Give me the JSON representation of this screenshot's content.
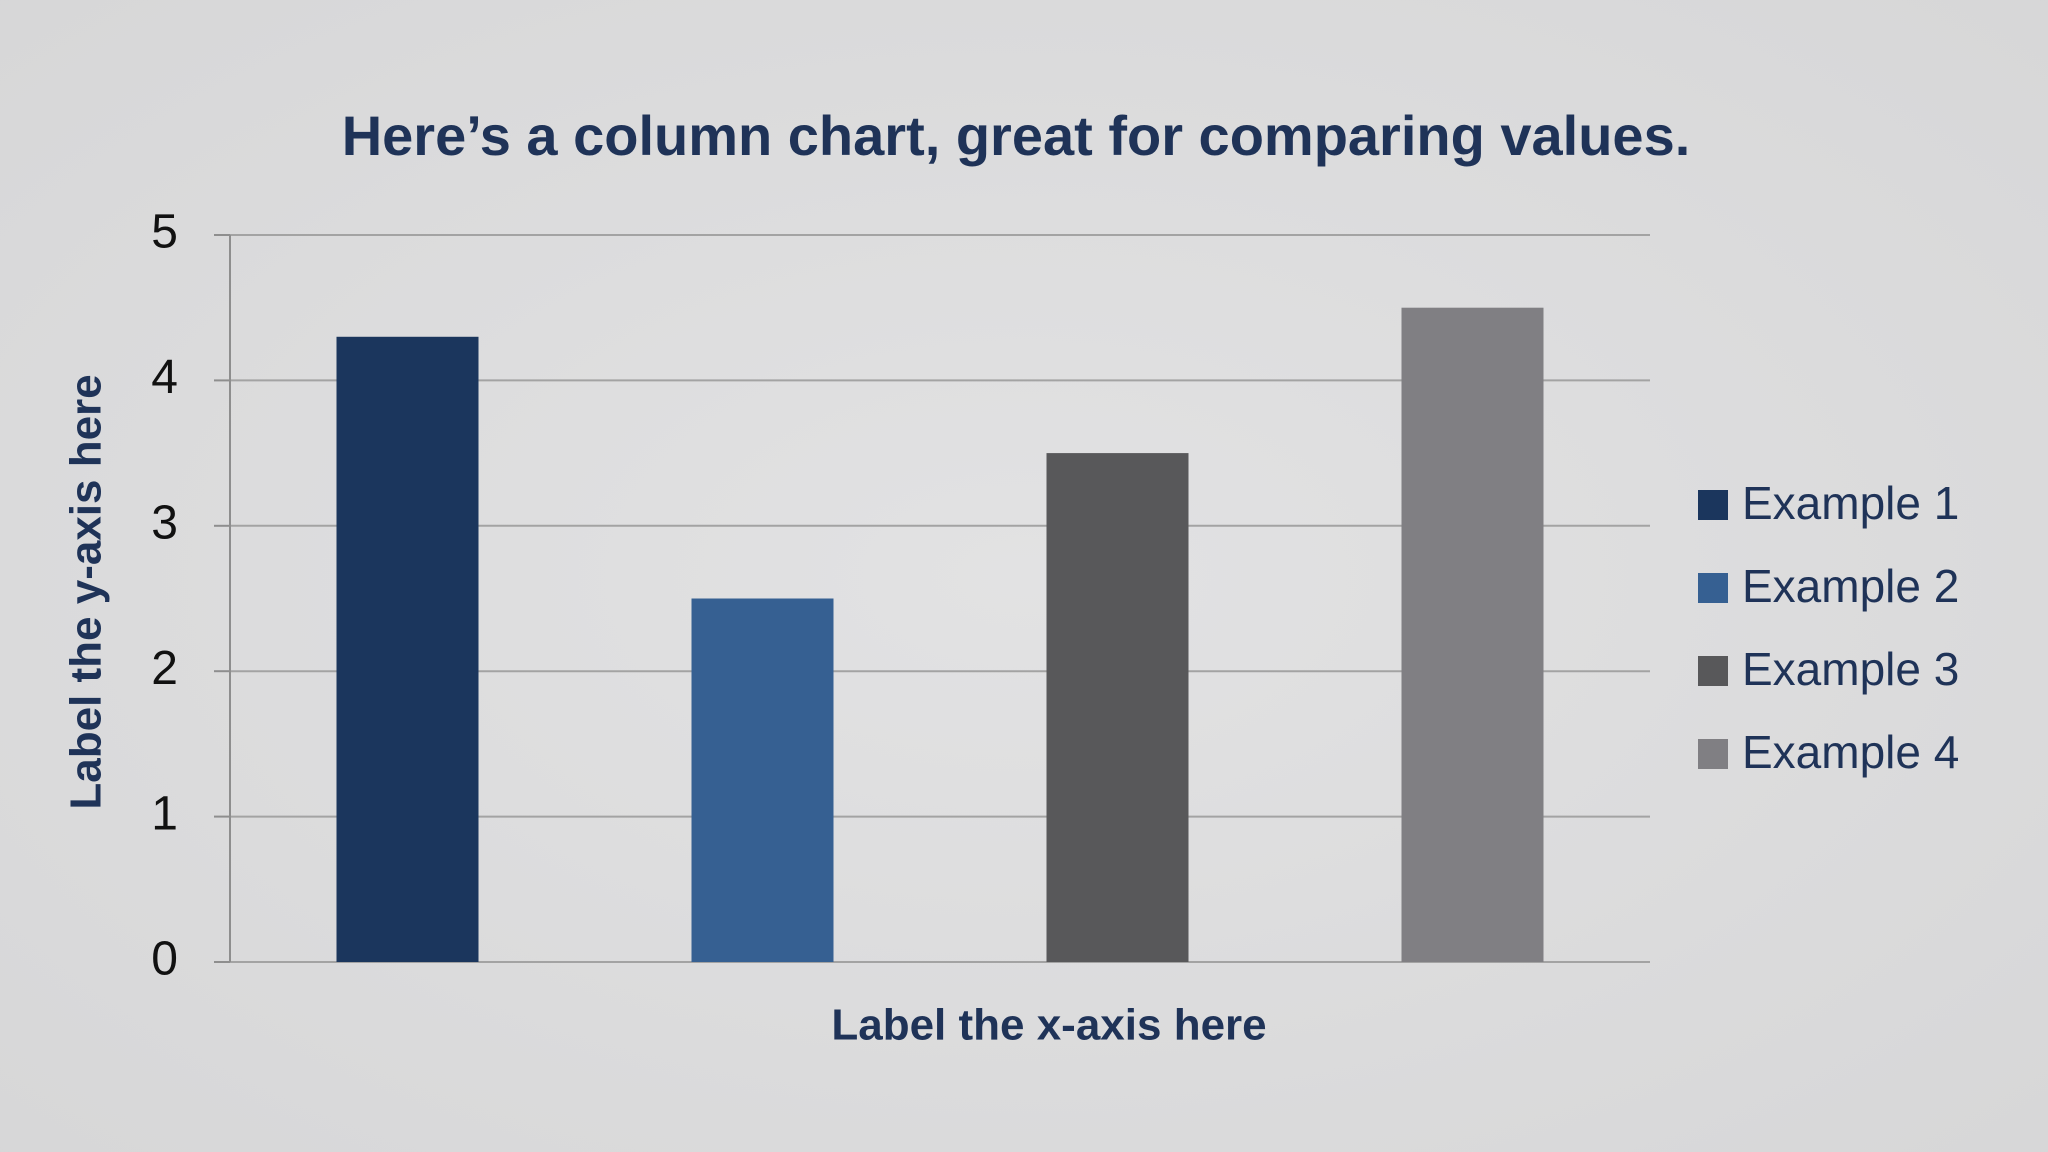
{
  "chart_data": {
    "type": "bar",
    "title": "Here’s a column chart, great for comparing values.",
    "x_label": "Label the x-axis here",
    "y_label": "Label the y-axis here",
    "categories": [
      null
    ],
    "series": [
      {
        "name": "Example 1",
        "color": "#1b365d",
        "values": [
          4.3
        ]
      },
      {
        "name": "Example 2",
        "color": "#366092",
        "values": [
          2.5
        ]
      },
      {
        "name": "Example 3",
        "color": "#58585a",
        "values": [
          3.5
        ]
      },
      {
        "name": "Example 4",
        "color": "#807f83",
        "values": [
          4.5
        ]
      }
    ],
    "ylim": [
      0,
      5
    ],
    "yticks": [
      0,
      1,
      2,
      3,
      4,
      5
    ],
    "grid": true,
    "legend": "right"
  }
}
